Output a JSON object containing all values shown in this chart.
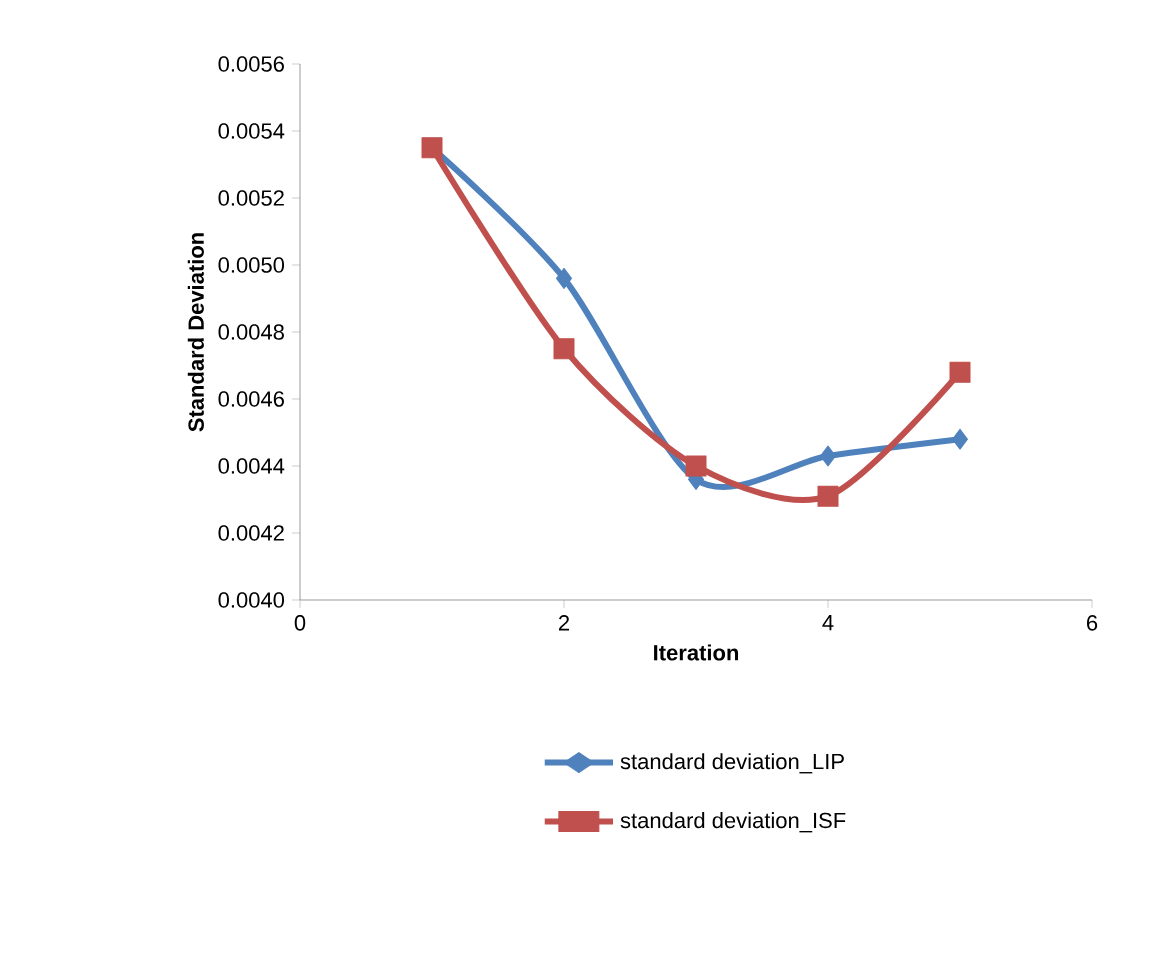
{
  "chart_data": {
    "type": "line",
    "xlabel": "Iteration",
    "ylabel": "Standard Deviation",
    "x": [
      1,
      2,
      3,
      4,
      5
    ],
    "series": [
      {
        "name": "standard deviation_LIP",
        "color": "#4f81bd",
        "marker": "diamond",
        "values": [
          0.00535,
          0.00496,
          0.00436,
          0.00443,
          0.00448
        ]
      },
      {
        "name": "standard deviation_ISF",
        "color": "#c0504d",
        "marker": "square",
        "values": [
          0.00535,
          0.00475,
          0.0044,
          0.00431,
          0.00468
        ]
      }
    ],
    "xlim": [
      0,
      6
    ],
    "xticks": [
      0,
      2,
      4,
      6
    ],
    "ylim": [
      0.004,
      0.0056
    ],
    "yticks": [
      {
        "value": 0.004,
        "label": "0.0040"
      },
      {
        "value": 0.0042,
        "label": "0.0042"
      },
      {
        "value": 0.0044,
        "label": "0.0044"
      },
      {
        "value": 0.0046,
        "label": "0.0046"
      },
      {
        "value": 0.0048,
        "label": "0.0048"
      },
      {
        "value": 0.005,
        "label": "0.0050"
      },
      {
        "value": 0.0052,
        "label": "0.0052"
      },
      {
        "value": 0.0054,
        "label": "0.0054"
      },
      {
        "value": 0.0056,
        "label": "0.0056"
      }
    ],
    "grid": false,
    "legend": "bottom"
  }
}
